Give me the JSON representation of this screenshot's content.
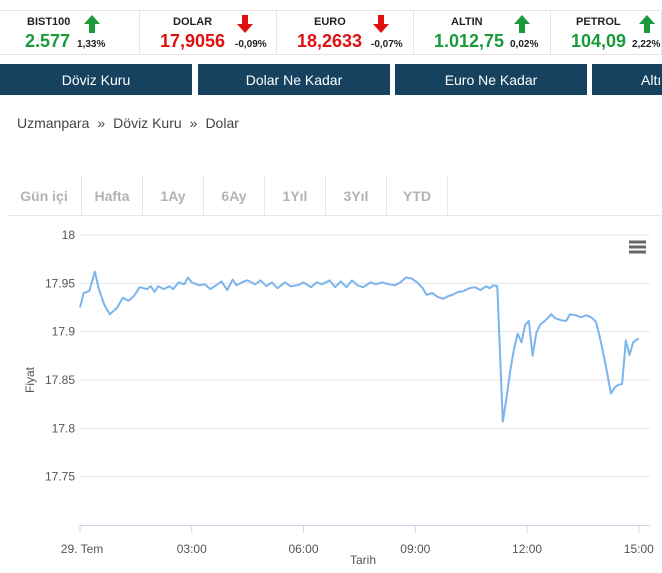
{
  "ticker": [
    {
      "name": "BIST100",
      "value": "2.577",
      "change": "1,33%",
      "direction": "up"
    },
    {
      "name": "DOLAR",
      "value": "17,9056",
      "change": "-0,09%",
      "direction": "down"
    },
    {
      "name": "EURO",
      "value": "18,2633",
      "change": "-0,07%",
      "direction": "down"
    },
    {
      "name": "ALTIN",
      "value": "1.012,75",
      "change": "0,02%",
      "direction": "up"
    },
    {
      "name": "PETROL",
      "value": "104,09",
      "change": "2,22%",
      "direction": "up"
    }
  ],
  "colors": {
    "up": "#1a9a3a",
    "down": "#e01010",
    "nav": "#17425f",
    "line": "#7cb5ec"
  },
  "nav": {
    "items": [
      "Döviz Kuru",
      "Dolar Ne Kadar",
      "Euro Ne Kadar",
      "Altı"
    ]
  },
  "breadcrumb": {
    "items": [
      "Uzmanpara",
      "Döviz Kuru",
      "Dolar"
    ],
    "separator": "»"
  },
  "ranges": {
    "items": [
      "Gün içi",
      "Hafta",
      "1Ay",
      "6Ay",
      "1Yıl",
      "3Yıl",
      "YTD"
    ]
  },
  "menu_icon": "hamburger-icon",
  "chart_data": {
    "type": "line",
    "xlabel": "Tarih",
    "ylabel": "Fiyat",
    "ylim": [
      17.7,
      18.0
    ],
    "yticks": [
      "18",
      "17.95",
      "17.9",
      "17.85",
      "17.8",
      "17.75"
    ],
    "xticks": [
      "29. Tem",
      "03:00",
      "06:00",
      "09:00",
      "12:00",
      "15:00"
    ],
    "xlim_hours": [
      0,
      15.3
    ],
    "grid": true,
    "legend": "none",
    "series": [
      {
        "values": [
          [
            0.0,
            17.925
          ],
          [
            0.1,
            17.94
          ],
          [
            0.25,
            17.942
          ],
          [
            0.4,
            17.962
          ],
          [
            0.5,
            17.945
          ],
          [
            0.65,
            17.928
          ],
          [
            0.8,
            17.918
          ],
          [
            1.0,
            17.925
          ],
          [
            1.15,
            17.935
          ],
          [
            1.3,
            17.932
          ],
          [
            1.45,
            17.937
          ],
          [
            1.6,
            17.946
          ],
          [
            1.8,
            17.944
          ],
          [
            1.9,
            17.947
          ],
          [
            2.0,
            17.941
          ],
          [
            2.1,
            17.947
          ],
          [
            2.25,
            17.944
          ],
          [
            2.4,
            17.947
          ],
          [
            2.5,
            17.944
          ],
          [
            2.65,
            17.951
          ],
          [
            2.8,
            17.949
          ],
          [
            2.9,
            17.956
          ],
          [
            3.0,
            17.951
          ],
          [
            3.2,
            17.948
          ],
          [
            3.35,
            17.949
          ],
          [
            3.5,
            17.944
          ],
          [
            3.65,
            17.948
          ],
          [
            3.8,
            17.952
          ],
          [
            3.95,
            17.943
          ],
          [
            4.1,
            17.954
          ],
          [
            4.2,
            17.948
          ],
          [
            4.4,
            17.952
          ],
          [
            4.5,
            17.953
          ],
          [
            4.7,
            17.949
          ],
          [
            4.85,
            17.953
          ],
          [
            5.0,
            17.947
          ],
          [
            5.15,
            17.951
          ],
          [
            5.3,
            17.945
          ],
          [
            5.5,
            17.951
          ],
          [
            5.65,
            17.947
          ],
          [
            5.85,
            17.948
          ],
          [
            6.0,
            17.951
          ],
          [
            6.2,
            17.946
          ],
          [
            6.35,
            17.951
          ],
          [
            6.5,
            17.949
          ],
          [
            6.7,
            17.953
          ],
          [
            6.85,
            17.946
          ],
          [
            7.0,
            17.952
          ],
          [
            7.15,
            17.946
          ],
          [
            7.3,
            17.953
          ],
          [
            7.45,
            17.948
          ],
          [
            7.6,
            17.946
          ],
          [
            7.8,
            17.951
          ],
          [
            7.95,
            17.949
          ],
          [
            8.1,
            17.951
          ],
          [
            8.3,
            17.949
          ],
          [
            8.45,
            17.948
          ],
          [
            8.6,
            17.951
          ],
          [
            8.75,
            17.956
          ],
          [
            8.9,
            17.955
          ],
          [
            9.05,
            17.951
          ],
          [
            9.2,
            17.945
          ],
          [
            9.3,
            17.938
          ],
          [
            9.45,
            17.94
          ],
          [
            9.6,
            17.936
          ],
          [
            9.75,
            17.934
          ],
          [
            9.9,
            17.937
          ],
          [
            10.0,
            17.938
          ],
          [
            10.15,
            17.941
          ],
          [
            10.3,
            17.942
          ],
          [
            10.45,
            17.945
          ],
          [
            10.6,
            17.946
          ],
          [
            10.75,
            17.943
          ],
          [
            10.9,
            17.947
          ],
          [
            11.0,
            17.945
          ],
          [
            11.1,
            17.948
          ],
          [
            11.2,
            17.947
          ],
          [
            11.35,
            17.807
          ],
          [
            11.45,
            17.832
          ],
          [
            11.55,
            17.86
          ],
          [
            11.65,
            17.882
          ],
          [
            11.75,
            17.898
          ],
          [
            11.85,
            17.889
          ],
          [
            11.95,
            17.907
          ],
          [
            12.05,
            17.911
          ],
          [
            12.15,
            17.875
          ],
          [
            12.25,
            17.899
          ],
          [
            12.35,
            17.907
          ],
          [
            12.5,
            17.912
          ],
          [
            12.65,
            17.918
          ],
          [
            12.75,
            17.914
          ],
          [
            12.9,
            17.912
          ],
          [
            13.05,
            17.911
          ],
          [
            13.15,
            17.918
          ],
          [
            13.3,
            17.917
          ],
          [
            13.45,
            17.915
          ],
          [
            13.6,
            17.917
          ],
          [
            13.75,
            17.914
          ],
          [
            13.85,
            17.91
          ],
          [
            13.95,
            17.895
          ],
          [
            14.05,
            17.877
          ],
          [
            14.15,
            17.857
          ],
          [
            14.25,
            17.836
          ],
          [
            14.35,
            17.842
          ],
          [
            14.45,
            17.845
          ],
          [
            14.55,
            17.846
          ],
          [
            14.65,
            17.891
          ],
          [
            14.75,
            17.876
          ],
          [
            14.85,
            17.889
          ],
          [
            15.0,
            17.893
          ]
        ]
      }
    ]
  }
}
